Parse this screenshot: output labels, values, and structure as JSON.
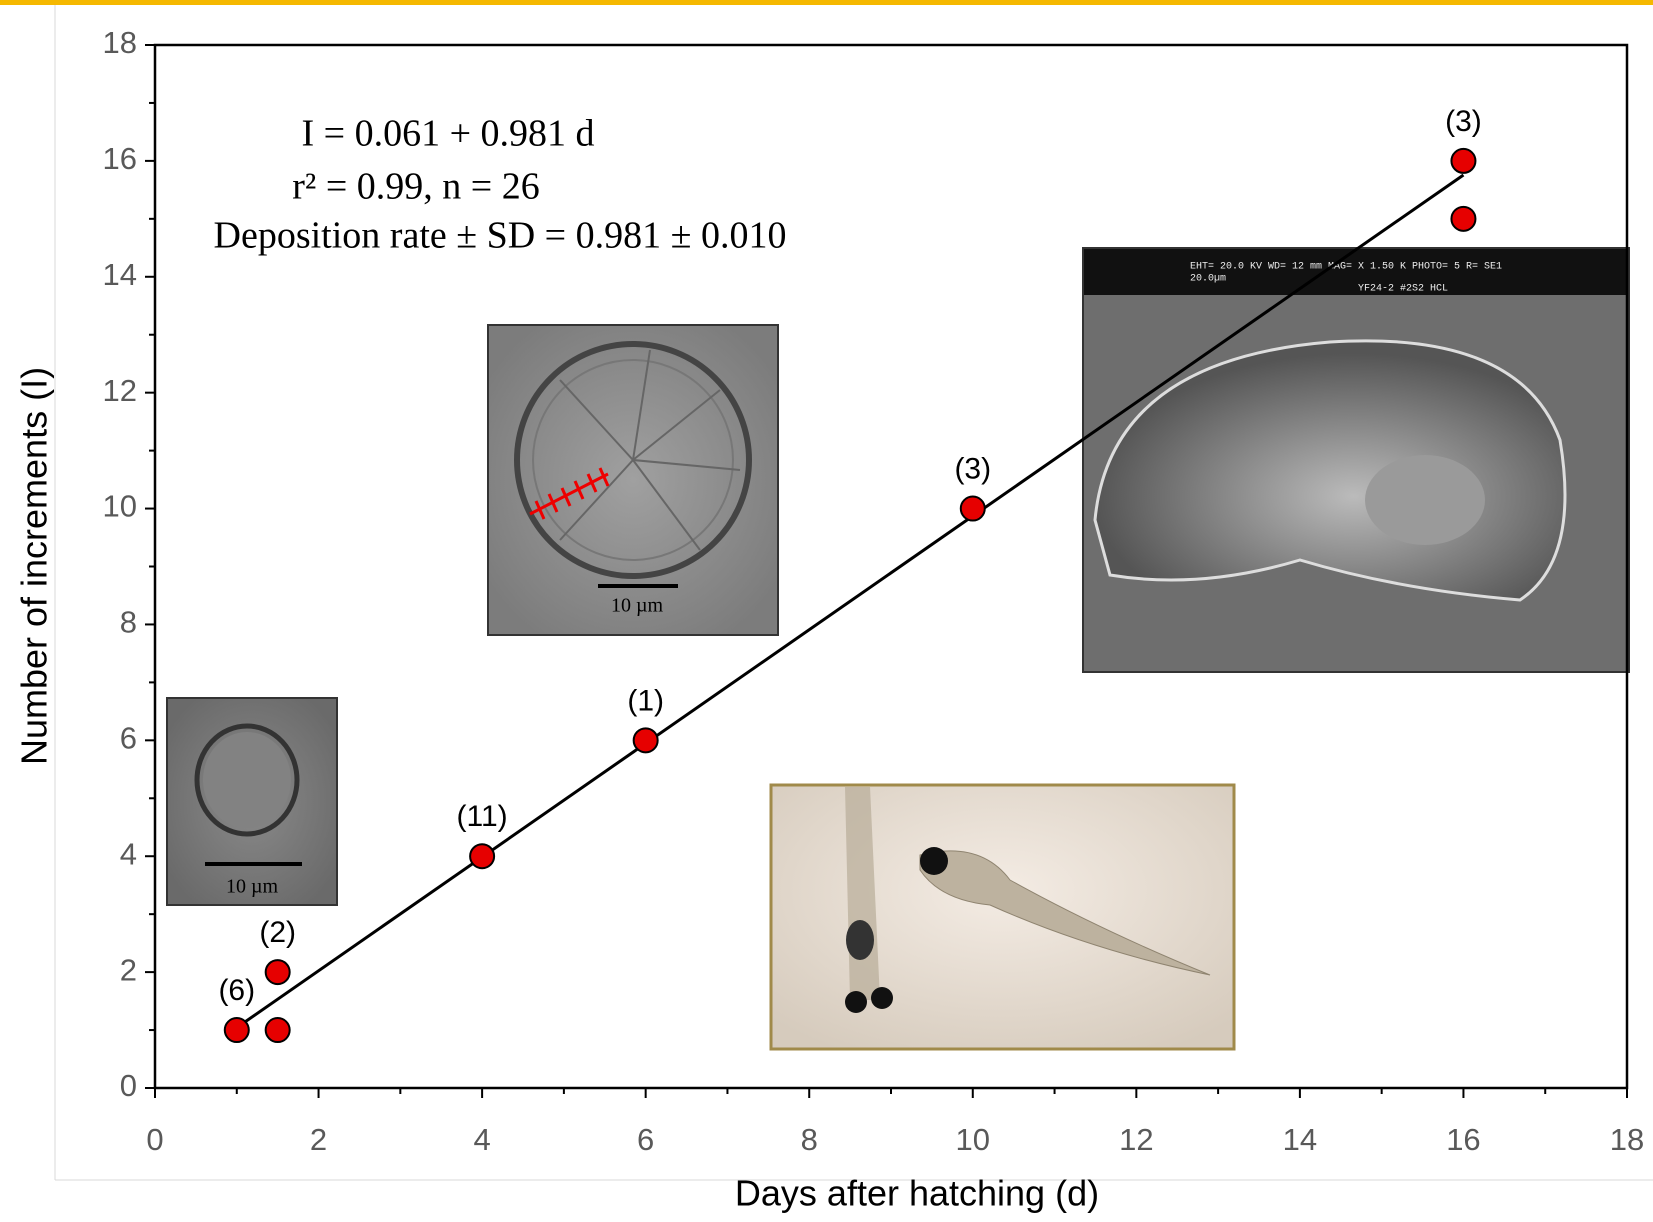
{
  "chart_data": {
    "type": "scatter",
    "x_label": "Days after hatching (d)",
    "y_label": "Number of increments (I)",
    "x": [
      1,
      1.5,
      1.5,
      4,
      6,
      10,
      16,
      16
    ],
    "values": [
      1,
      2,
      1,
      4,
      6,
      10,
      16,
      15
    ],
    "point_labels": [
      "(6)",
      "(2)",
      null,
      "(11)",
      "(1)",
      "(3)",
      "(3)",
      null
    ],
    "color": "#e60000",
    "fit": {
      "intercept": 0.061,
      "slope": 0.981
    },
    "equation": [
      "I = 0.061 + 0.981 d",
      "r² = 0.99, n = 26",
      "Deposition rate ± SD = 0.981 ± 0.010"
    ],
    "xlim": [
      0,
      18
    ],
    "xticks": [
      0,
      2,
      4,
      6,
      8,
      10,
      12,
      14,
      16,
      18
    ],
    "ylim": [
      0,
      18
    ],
    "yticks": [
      0,
      2,
      4,
      6,
      8,
      10,
      12,
      14,
      16,
      18
    ],
    "insets": {
      "small_otolith_scale": "10 µm",
      "large_otolith_scale": "10 µm",
      "sem_header": [
        "EHT= 20.0 KV  WD= 12  mm    MAG= X 1.50 K PHOTO= 5    R= SE1",
        "20.0µm",
        "YF24-2 #2S2 HCL"
      ]
    }
  }
}
